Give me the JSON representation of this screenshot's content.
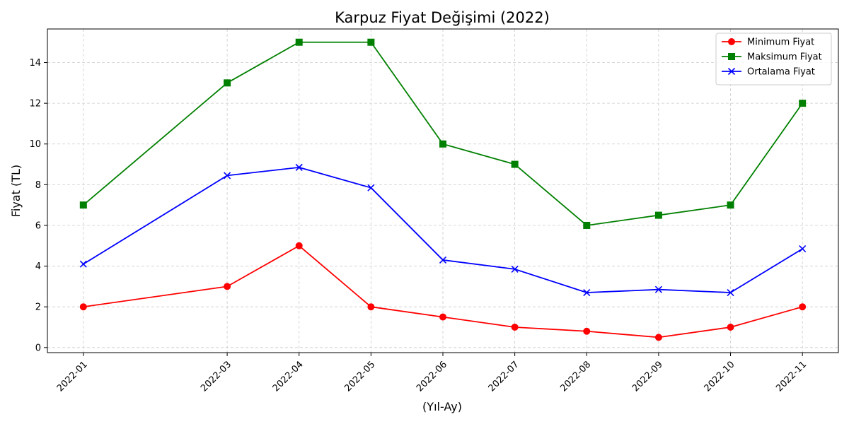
{
  "chart_data": {
    "type": "line",
    "title": "Karpuz Fiyat Değişimi (2022)",
    "xlabel": "(Yıl-Ay)",
    "ylabel": "Fiyat (TL)",
    "x": [
      "2022-01",
      "2022-03",
      "2022-04",
      "2022-05",
      "2022-06",
      "2022-07",
      "2022-08",
      "2022-09",
      "2022-10",
      "2022-11"
    ],
    "ylim": [
      -0.25,
      15.65
    ],
    "yticks": [
      0,
      2,
      4,
      6,
      8,
      10,
      12,
      14
    ],
    "grid": true,
    "legend_position": "top-right",
    "series": [
      {
        "name": "Minimum Fiyat",
        "color": "#ff0000",
        "marker": "circle",
        "values": [
          2,
          3,
          5,
          2,
          1.5,
          1,
          0.8,
          0.5,
          1,
          2
        ]
      },
      {
        "name": "Maksimum Fiyat",
        "color": "#008000",
        "marker": "square",
        "values": [
          7,
          13,
          15,
          15,
          10,
          9,
          6,
          6.5,
          7,
          12
        ]
      },
      {
        "name": "Ortalama Fiyat",
        "color": "#0000ff",
        "marker": "x",
        "values": [
          4.1,
          8.45,
          8.85,
          7.85,
          4.3,
          3.85,
          2.7,
          2.85,
          2.7,
          4.85
        ]
      }
    ]
  }
}
